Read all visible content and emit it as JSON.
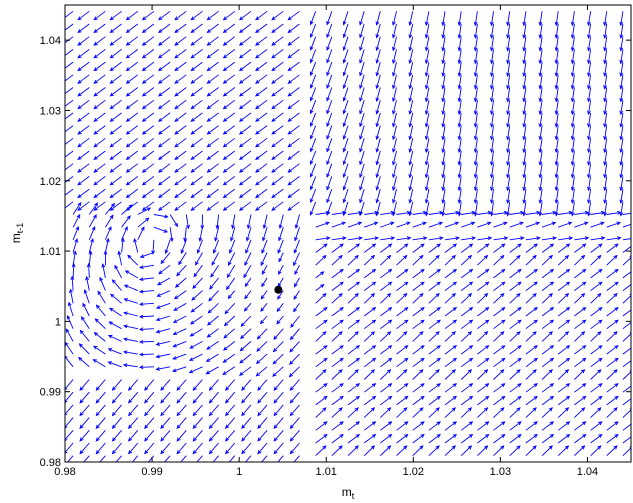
{
  "chart_data": {
    "type": "quiver",
    "title": "",
    "xlabel": {
      "base": "m",
      "sub": "t"
    },
    "ylabel": {
      "base": "m",
      "sub": "t-1"
    },
    "xlim": [
      0.98,
      1.045
    ],
    "ylim": [
      0.98,
      1.045
    ],
    "xticks": [
      0.98,
      0.99,
      1,
      1.01,
      1.02,
      1.03,
      1.04
    ],
    "yticks": [
      0.98,
      0.99,
      1,
      1.01,
      1.02,
      1.03,
      1.04
    ],
    "xtick_labels": [
      "0.98",
      "0.99",
      "1",
      "1.01",
      "1.02",
      "1.03",
      "1.04"
    ],
    "ytick_labels": [
      "0.98",
      "0.99",
      "1",
      "1.01",
      "1.02",
      "1.03",
      "1.04"
    ],
    "grid": false,
    "arrow_color": "#0000ff",
    "fixed_point": {
      "x": 1.0045,
      "y": 1.0045,
      "color": "#000000"
    },
    "field_grid": {
      "nx": 35,
      "ny": 36
    }
  }
}
